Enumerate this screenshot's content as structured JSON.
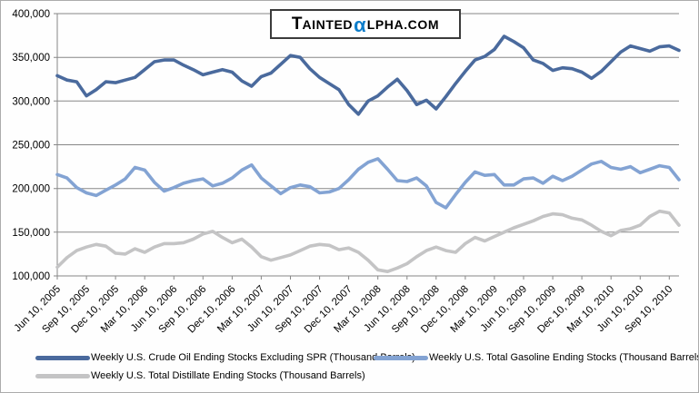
{
  "logo": {
    "t": "T",
    "ainted": "AINTED",
    "alpha": "α",
    "rest": "LPHA.COM",
    "alpha_color": "#0D7DCA",
    "full_text": "TaintedAlpha.com"
  },
  "chart_data": {
    "type": "line",
    "x_start": "Jun 2005",
    "x_interval": "monthly",
    "ylim": [
      100000,
      400000
    ],
    "grid": "horizontal",
    "grid_color": "#878787",
    "legend_position": "bottom",
    "y_ticks": [
      {
        "value": 100000,
        "label": "100,000"
      },
      {
        "value": 150000,
        "label": "150,000"
      },
      {
        "value": 200000,
        "label": "200,000"
      },
      {
        "value": 250000,
        "label": "250,000"
      },
      {
        "value": 300000,
        "label": "300,000"
      },
      {
        "value": 350000,
        "label": "350,000"
      },
      {
        "value": 400000,
        "label": "400,000"
      }
    ],
    "x_ticks": [
      {
        "index": 0,
        "label": "Jun 10, 2005"
      },
      {
        "index": 3,
        "label": "Sep 10, 2005"
      },
      {
        "index": 6,
        "label": "Dec 10, 2005"
      },
      {
        "index": 9,
        "label": "Mar 10, 2006"
      },
      {
        "index": 12,
        "label": "Jun 10, 2006"
      },
      {
        "index": 15,
        "label": "Sep 10, 2006"
      },
      {
        "index": 18,
        "label": "Dec 10, 2006"
      },
      {
        "index": 21,
        "label": "Mar 10, 2007"
      },
      {
        "index": 24,
        "label": "Jun 10, 2007"
      },
      {
        "index": 27,
        "label": "Sep 10, 2007"
      },
      {
        "index": 30,
        "label": "Dec 10, 2007"
      },
      {
        "index": 33,
        "label": "Mar 10, 2008"
      },
      {
        "index": 36,
        "label": "Jun 10, 2008"
      },
      {
        "index": 39,
        "label": "Sep 10, 2008"
      },
      {
        "index": 42,
        "label": "Dec 10, 2008"
      },
      {
        "index": 45,
        "label": "Mar 10, 2009"
      },
      {
        "index": 48,
        "label": "Jun 10, 2009"
      },
      {
        "index": 51,
        "label": "Sep 10, 2009"
      },
      {
        "index": 54,
        "label": "Dec 10, 2009"
      },
      {
        "index": 57,
        "label": "Mar 10, 2010"
      },
      {
        "index": 60,
        "label": "Jun 10, 2010"
      },
      {
        "index": 63,
        "label": "Sep 10, 2010"
      }
    ],
    "series": [
      {
        "name": "Weekly U.S. Crude Oil Ending Stocks Excluding SPR  (Thousand Barrels)",
        "color": "#4A6A9D",
        "values": [
          329000,
          324000,
          322000,
          306000,
          313000,
          322000,
          321000,
          324000,
          327000,
          336000,
          345000,
          347000,
          347000,
          341000,
          336000,
          330000,
          333000,
          336000,
          333000,
          323000,
          317000,
          328000,
          332000,
          342000,
          352000,
          350000,
          337000,
          327000,
          320000,
          313000,
          296000,
          285000,
          300000,
          306000,
          316000,
          325000,
          312000,
          296000,
          301000,
          291000,
          305000,
          320000,
          334000,
          347000,
          351000,
          359000,
          374000,
          368000,
          361000,
          347000,
          343000,
          335000,
          338000,
          337000,
          333000,
          326000,
          334000,
          345000,
          356000,
          363000,
          360000,
          357000,
          362000,
          363000,
          358000
        ]
      },
      {
        "name": "Weekly U.S. Total Gasoline Ending Stocks  (Thousand Barrels)",
        "color": "#83A3D3",
        "values": [
          216000,
          212000,
          201000,
          195000,
          192000,
          198000,
          204000,
          211000,
          224000,
          221000,
          207000,
          197000,
          201000,
          206000,
          209000,
          211000,
          203000,
          206000,
          212000,
          221000,
          227000,
          212000,
          203000,
          194000,
          201000,
          204000,
          202000,
          195000,
          196000,
          200000,
          210000,
          222000,
          230000,
          234000,
          222000,
          209000,
          208000,
          212000,
          203000,
          184000,
          178000,
          193000,
          207000,
          219000,
          215000,
          216000,
          204000,
          204000,
          211000,
          212000,
          206000,
          214000,
          209000,
          214000,
          221000,
          228000,
          231000,
          224000,
          222000,
          225000,
          218000,
          222000,
          226000,
          224000,
          210000
        ]
      },
      {
        "name": "Weekly U.S. Total Distillate Ending Stocks  (Thousand Barrels)",
        "color": "#C4C4C5",
        "values": [
          110000,
          121000,
          129000,
          133000,
          136000,
          134000,
          126000,
          125000,
          131000,
          127000,
          133000,
          137000,
          137000,
          138000,
          142000,
          148000,
          151000,
          144000,
          138000,
          142000,
          133000,
          122000,
          118000,
          121000,
          124000,
          129000,
          134000,
          136000,
          135000,
          130000,
          132000,
          127000,
          118000,
          107000,
          105000,
          109000,
          114000,
          122000,
          129000,
          133000,
          129000,
          127000,
          137000,
          144000,
          140000,
          145000,
          150000,
          155000,
          159000,
          163000,
          168000,
          171000,
          170000,
          166000,
          164000,
          158000,
          151000,
          146000,
          152000,
          154000,
          158000,
          168000,
          174000,
          172000,
          158000
        ]
      }
    ]
  }
}
